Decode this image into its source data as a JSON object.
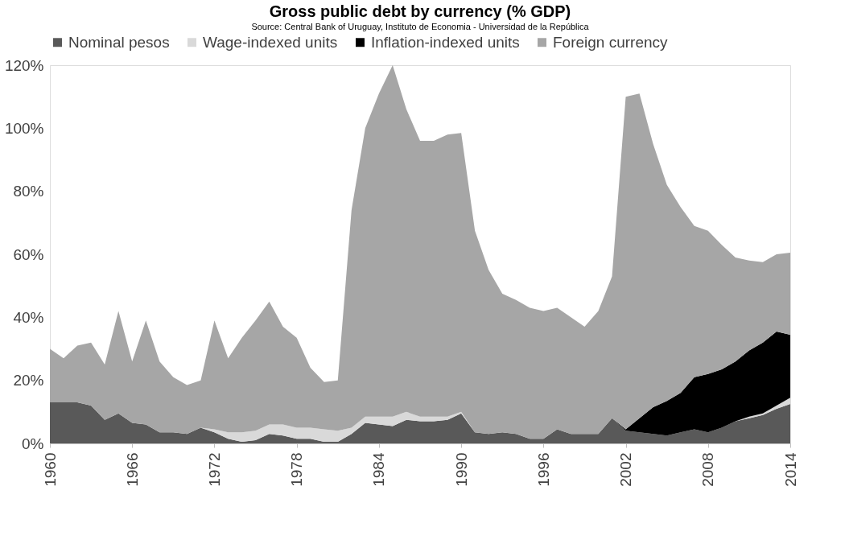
{
  "chart_data": {
    "type": "area",
    "stacked": true,
    "title": "Gross public debt by currency (% GDP)",
    "subtitle": "Source: Central Bank of Uruguay, Instituto de Economia - Universidad de la República",
    "x": [
      1960,
      1961,
      1962,
      1963,
      1964,
      1965,
      1966,
      1967,
      1968,
      1969,
      1970,
      1971,
      1972,
      1973,
      1974,
      1975,
      1976,
      1977,
      1978,
      1979,
      1980,
      1981,
      1982,
      1983,
      1984,
      1985,
      1986,
      1987,
      1988,
      1989,
      1990,
      1991,
      1992,
      1993,
      1994,
      1995,
      1996,
      1997,
      1998,
      1999,
      2000,
      2001,
      2002,
      2003,
      2004,
      2005,
      2006,
      2007,
      2008,
      2009,
      2010,
      2011,
      2012,
      2013,
      2014
    ],
    "series": [
      {
        "name": "Nominal pesos",
        "color": "#595959",
        "values": [
          13,
          13,
          13,
          12,
          7.5,
          9.5,
          6.5,
          6,
          3.5,
          3.5,
          3,
          5,
          3.5,
          1.5,
          0.5,
          1,
          3,
          2.5,
          1.5,
          1.5,
          0.5,
          0.5,
          3,
          6.5,
          6,
          5.5,
          7.5,
          7,
          7,
          7.5,
          9.5,
          3.5,
          3,
          3.5,
          3,
          1.5,
          1.5,
          4.5,
          3,
          3,
          3,
          8,
          4,
          3.5,
          3,
          2.5,
          3.5,
          4.5,
          3.5,
          5,
          7,
          8,
          9,
          11,
          12.5
        ]
      },
      {
        "name": "Wage-indexed units",
        "color": "#d9d9d9",
        "values": [
          0,
          0,
          0,
          0,
          0,
          0,
          0,
          0,
          0,
          0,
          0,
          0,
          1,
          2,
          3,
          3,
          3,
          3.5,
          3.5,
          3.5,
          4,
          3.5,
          2,
          2,
          2.5,
          3,
          2.5,
          1.5,
          1.5,
          1,
          0.5,
          0,
          0,
          0,
          0,
          0,
          0,
          0,
          0,
          0,
          0,
          0,
          0,
          0,
          0,
          0,
          0,
          0,
          0,
          0,
          0,
          0.5,
          0.5,
          1,
          2
        ]
      },
      {
        "name": "Inflation-indexed units",
        "color": "#000000",
        "values": [
          0,
          0,
          0,
          0,
          0,
          0,
          0,
          0,
          0,
          0,
          0,
          0,
          0,
          0,
          0,
          0,
          0,
          0,
          0,
          0,
          0,
          0,
          0,
          0,
          0,
          0,
          0,
          0,
          0,
          0,
          0,
          0,
          0,
          0,
          0,
          0,
          0,
          0,
          0,
          0,
          0,
          0,
          0.5,
          4.5,
          8.5,
          11,
          12.5,
          16.5,
          18.5,
          18.5,
          19,
          21,
          22.5,
          23.5,
          20
        ]
      },
      {
        "name": "Foreign currency",
        "color": "#a6a6a6",
        "values": [
          17,
          14,
          18,
          20,
          17.5,
          32.5,
          19.5,
          33,
          22.5,
          17.5,
          15.5,
          15,
          34.5,
          23.5,
          30,
          35,
          39,
          31,
          28.5,
          19,
          15,
          16,
          69,
          91.5,
          102.5,
          111.5,
          96,
          87.5,
          87.5,
          89.5,
          88.5,
          64,
          52,
          44,
          42.5,
          41.5,
          40.5,
          38.5,
          37,
          34,
          39,
          45,
          105.5,
          103,
          83.5,
          68.5,
          59,
          48,
          45.5,
          39.5,
          33,
          28.5,
          25.5,
          24.5,
          26
        ]
      }
    ],
    "xlim": [
      1960,
      2014
    ],
    "xticks": [
      1960,
      1966,
      1972,
      1978,
      1984,
      1990,
      1996,
      2002,
      2008,
      2014
    ],
    "ylim": [
      0,
      120
    ],
    "yticks": [
      {
        "value": 0,
        "label": "0%"
      },
      {
        "value": 20,
        "label": "20%"
      },
      {
        "value": 40,
        "label": "40%"
      },
      {
        "value": 60,
        "label": "60%"
      },
      {
        "value": 80,
        "label": "80%"
      },
      {
        "value": 100,
        "label": "100%"
      },
      {
        "value": 120,
        "label": "120%"
      }
    ],
    "grid": false,
    "legend": "top"
  }
}
